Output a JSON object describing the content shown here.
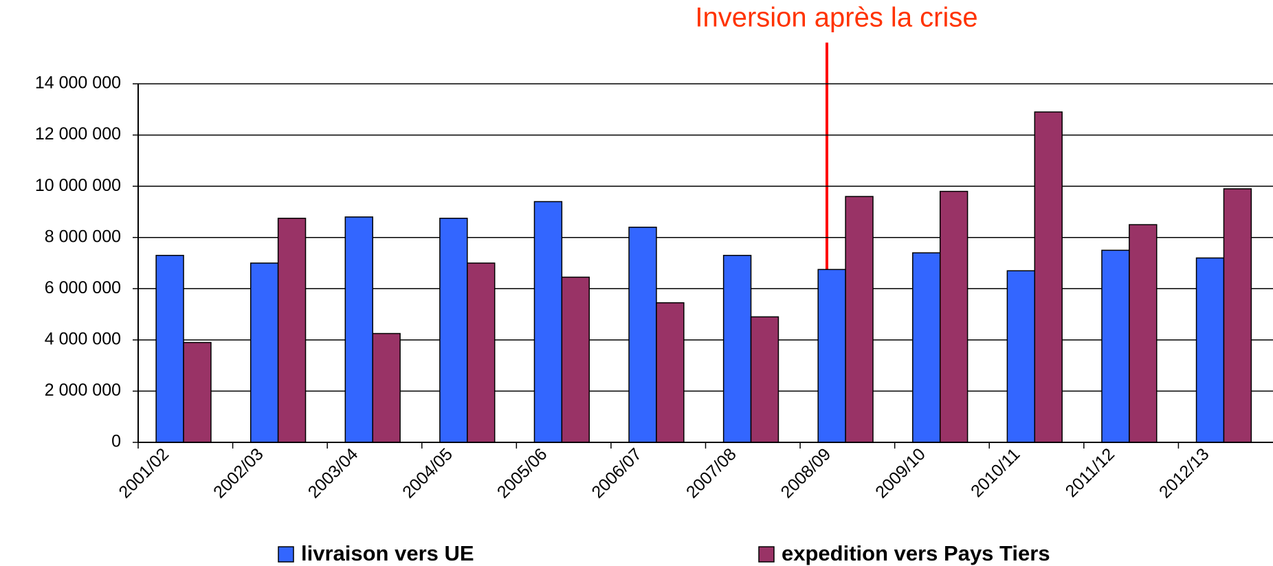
{
  "chart_data": {
    "type": "bar",
    "annotation": "Inversion après la crise",
    "categories": [
      "2001/02",
      "2002/03",
      "2003/04",
      "2004/05",
      "2005/06",
      "2006/07",
      "2007/08",
      "2008/09",
      "2009/10",
      "2010/11",
      "2011/12",
      "2012/13"
    ],
    "series": [
      {
        "name": "livraison vers UE",
        "color": "#3366ff",
        "values": [
          7300000,
          7000000,
          8800000,
          8750000,
          9400000,
          8400000,
          7300000,
          6750000,
          7400000,
          6700000,
          7500000,
          7200000
        ]
      },
      {
        "name": "expedition vers Pays Tiers",
        "color": "#993366",
        "values": [
          3900000,
          8750000,
          4250000,
          7000000,
          6450000,
          5450000,
          4900000,
          9600000,
          9800000,
          12900000,
          8500000,
          9900000
        ]
      }
    ],
    "ylim": [
      0,
      14000000
    ],
    "yticks": [
      0,
      {
        "value": 2000000,
        "label": "2 000 000"
      },
      {
        "value": 4000000,
        "label": "4 000 000"
      },
      {
        "value": 6000000,
        "label": "6 000 000"
      },
      {
        "value": 8000000,
        "label": "8 000 000"
      },
      {
        "value": 10000000,
        "label": "10 000 000"
      },
      {
        "value": 12000000,
        "label": "12 000 000"
      },
      {
        "value": 14000000,
        "label": "14 000 000"
      }
    ],
    "grid": true
  }
}
